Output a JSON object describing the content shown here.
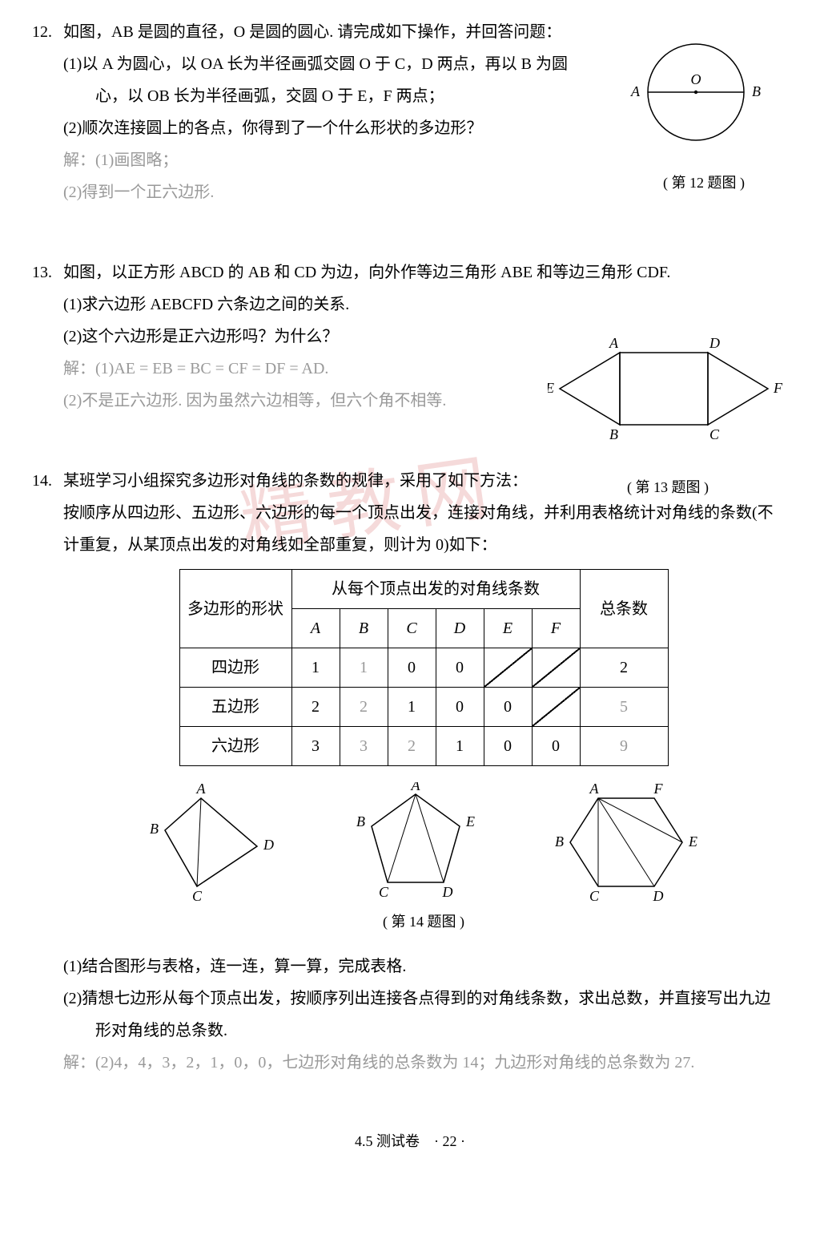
{
  "watermark": "精教网",
  "p12": {
    "num": "12.",
    "stem": "如图，AB 是圆的直径，O 是圆的圆心. 请完成如下操作，并回答问题：",
    "s1": "(1)以 A 为圆心，以 OA 长为半径画弧交圆 O 于 C，D 两点，再以 B 为圆心，以 OB 长为半径画弧，交圆 O 于 E，F 两点；",
    "s2": "(2)顺次连接圆上的各点，你得到了一个什么形状的多边形？",
    "a_label": "解：(1)画图略；",
    "a2": "(2)得到一个正六边形.",
    "caption": "( 第 12 题图 )",
    "labels": {
      "A": "A",
      "B": "B",
      "O": "O"
    }
  },
  "p13": {
    "num": "13.",
    "stem": "如图，以正方形 ABCD 的 AB 和 CD 为边，向外作等边三角形 ABE 和等边三角形 CDF.",
    "s1": "(1)求六边形 AEBCFD 六条边之间的关系.",
    "s2": "(2)这个六边形是正六边形吗？为什么？",
    "a1_label": "解：(1)AE = EB = BC = CF = DF = AD.",
    "a2": "(2)不是正六边形. 因为虽然六边相等，但六个角不相等.",
    "caption": "( 第 13 题图 )",
    "labels": {
      "A": "A",
      "B": "B",
      "C": "C",
      "D": "D",
      "E": "E",
      "F": "F"
    }
  },
  "p14": {
    "num": "14.",
    "stem": "某班学习小组探究多边形对角线的条数的规律，采用了如下方法：",
    "desc": "按顺序从四边形、五边形、六边形的每一个顶点出发，连接对角线，并利用表格统计对角线的条数(不计重复，从某顶点出发的对角线如全部重复，则计为 0)如下：",
    "caption": "( 第 14 题图 )",
    "s1": "(1)结合图形与表格，连一连，算一算，完成表格.",
    "s2": "(2)猜想七边形从每个顶点出发，按顺序列出连接各点得到的对角线条数，求出总数，并直接写出九边形对角线的总条数.",
    "a2": "解：(2)4，4，3，2，1，0，0，七边形对角线的总条数为 14；九边形对角线的总条数为 27.",
    "table": {
      "h_shape": "多边形的形状",
      "h_per": "从每个顶点出发的对角线条数",
      "h_total": "总条数",
      "cols": [
        "A",
        "B",
        "C",
        "D",
        "E",
        "F"
      ],
      "rows": [
        {
          "name": "四边形",
          "vals": [
            "1",
            "1",
            "0",
            "0",
            "/",
            "/"
          ],
          "total": "2",
          "ans_idx": [
            1
          ],
          "total_ans": false
        },
        {
          "name": "五边形",
          "vals": [
            "2",
            "2",
            "1",
            "0",
            "0",
            "/"
          ],
          "total": "5",
          "ans_idx": [
            1
          ],
          "total_ans": true
        },
        {
          "name": "六边形",
          "vals": [
            "3",
            "3",
            "2",
            "1",
            "0",
            "0"
          ],
          "total": "9",
          "ans_idx": [
            1,
            2
          ],
          "total_ans": true
        }
      ]
    },
    "shape_labels": {
      "quad": {
        "A": "A",
        "B": "B",
        "C": "C",
        "D": "D"
      },
      "pent": {
        "A": "A",
        "B": "B",
        "C": "C",
        "D": "D",
        "E": "E"
      },
      "hex": {
        "A": "A",
        "B": "B",
        "C": "C",
        "D": "D",
        "E": "E",
        "F": "F"
      }
    }
  },
  "footer": "4.5 测试卷　· 22 ·"
}
